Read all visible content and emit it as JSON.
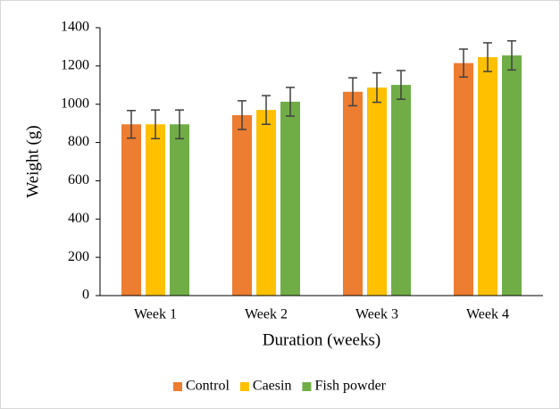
{
  "chart_data": {
    "type": "bar",
    "x_label": "Duration (weeks)",
    "y_label": "Weight (g)",
    "categories": [
      "Week 1",
      "Week 2",
      "Week 3",
      "Week 4"
    ],
    "series": [
      {
        "name": "Control",
        "color": "#ed7d31",
        "values": [
          895,
          943,
          1065,
          1215
        ],
        "errors": [
          72,
          75,
          73,
          73
        ]
      },
      {
        "name": "Caesin",
        "color": "#ffc000",
        "values": [
          895,
          970,
          1087,
          1246
        ],
        "errors": [
          75,
          75,
          77,
          75
        ]
      },
      {
        "name": "Fish powder",
        "color": "#70ad47",
        "values": [
          895,
          1013,
          1101,
          1255
        ],
        "errors": [
          75,
          75,
          75,
          76
        ]
      }
    ],
    "ylim": [
      0,
      1400
    ],
    "yticks": [
      0,
      200,
      400,
      600,
      800,
      1000,
      1200,
      1400
    ],
    "grid": false,
    "legend": "bottom"
  }
}
